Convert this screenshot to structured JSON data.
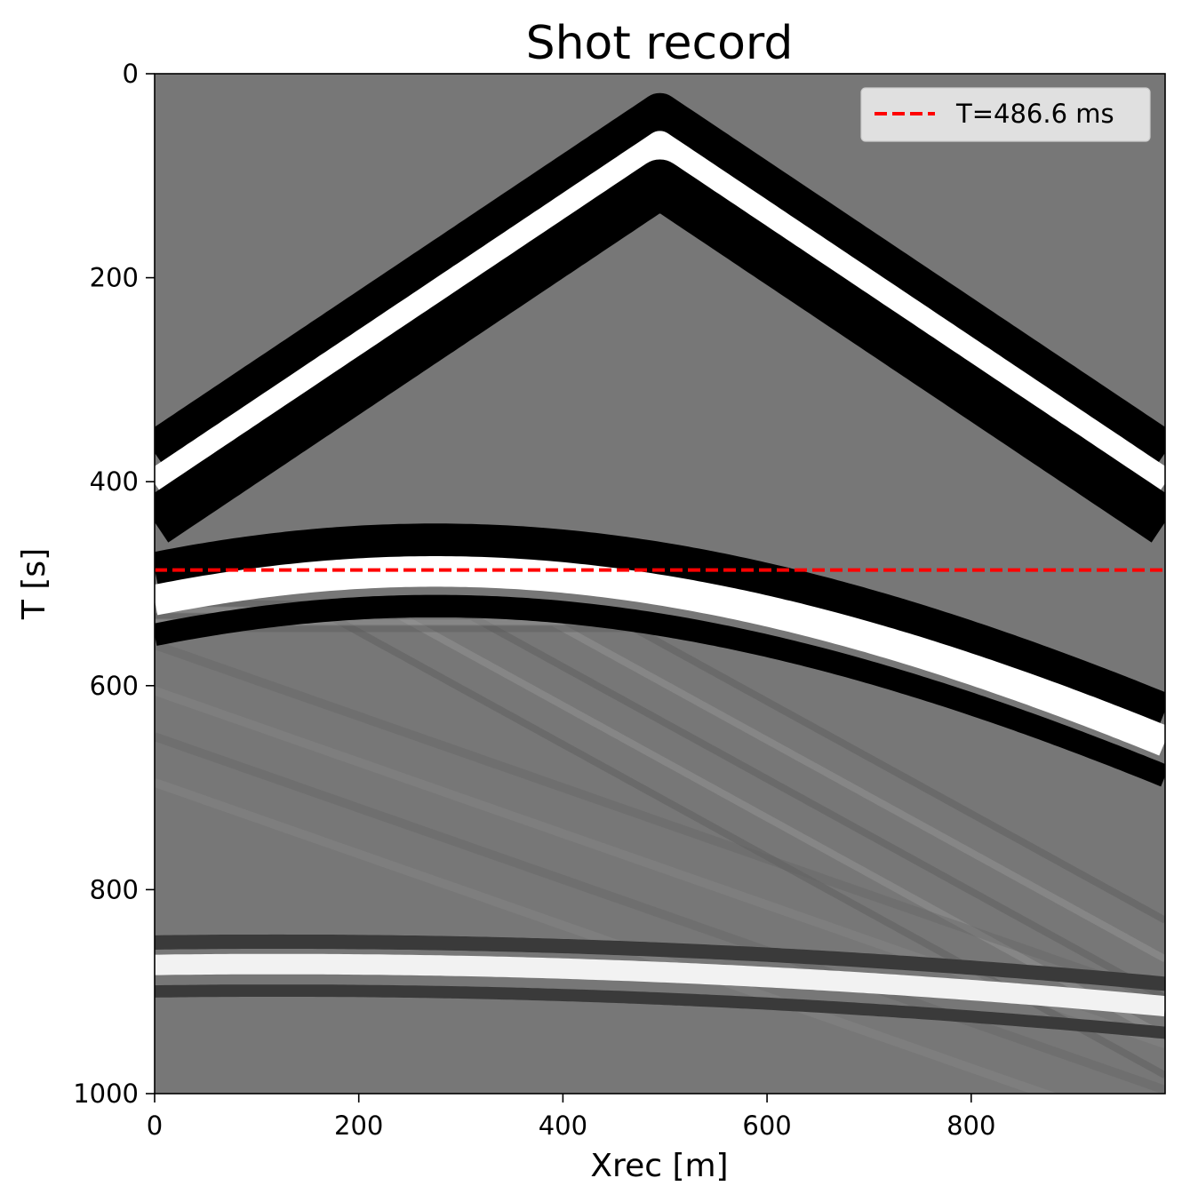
{
  "chart_data": {
    "type": "heatmap",
    "title": "Shot record",
    "xlabel": "Xrec [m]",
    "ylabel": "T [s]",
    "xlim": [
      0,
      990
    ],
    "ylim": [
      1000,
      0
    ],
    "x_ticks": [
      0,
      200,
      400,
      600,
      800
    ],
    "y_ticks": [
      0,
      200,
      400,
      600,
      800,
      1000
    ],
    "x_tick_labels": [
      "0",
      "200",
      "400",
      "600",
      "800"
    ],
    "y_tick_labels": [
      "0",
      "200",
      "400",
      "600",
      "800",
      "1000"
    ],
    "colormap": "gray",
    "grid": false,
    "legend": {
      "placement": "top-right",
      "entries": [
        {
          "label": "T=486.6 ms",
          "color": "#ff0000",
          "style": "dashed"
        }
      ]
    },
    "hlines": [
      {
        "y": 486.6,
        "color": "#ff0000",
        "style": "dashed",
        "label": "T=486.6 ms"
      }
    ],
    "events": [
      {
        "name": "direct-arrival",
        "type": "linear",
        "apex_x": 495,
        "apex_t": 70,
        "slope_t_per_m": 0.67
      },
      {
        "name": "reflection-1",
        "type": "hyperbola",
        "apex_x": 275,
        "apex_t": 480,
        "velocity": 1650
      },
      {
        "name": "reflection-2",
        "type": "hyperbola",
        "apex_x": 120,
        "apex_t": 873,
        "velocity": 3200
      }
    ]
  }
}
